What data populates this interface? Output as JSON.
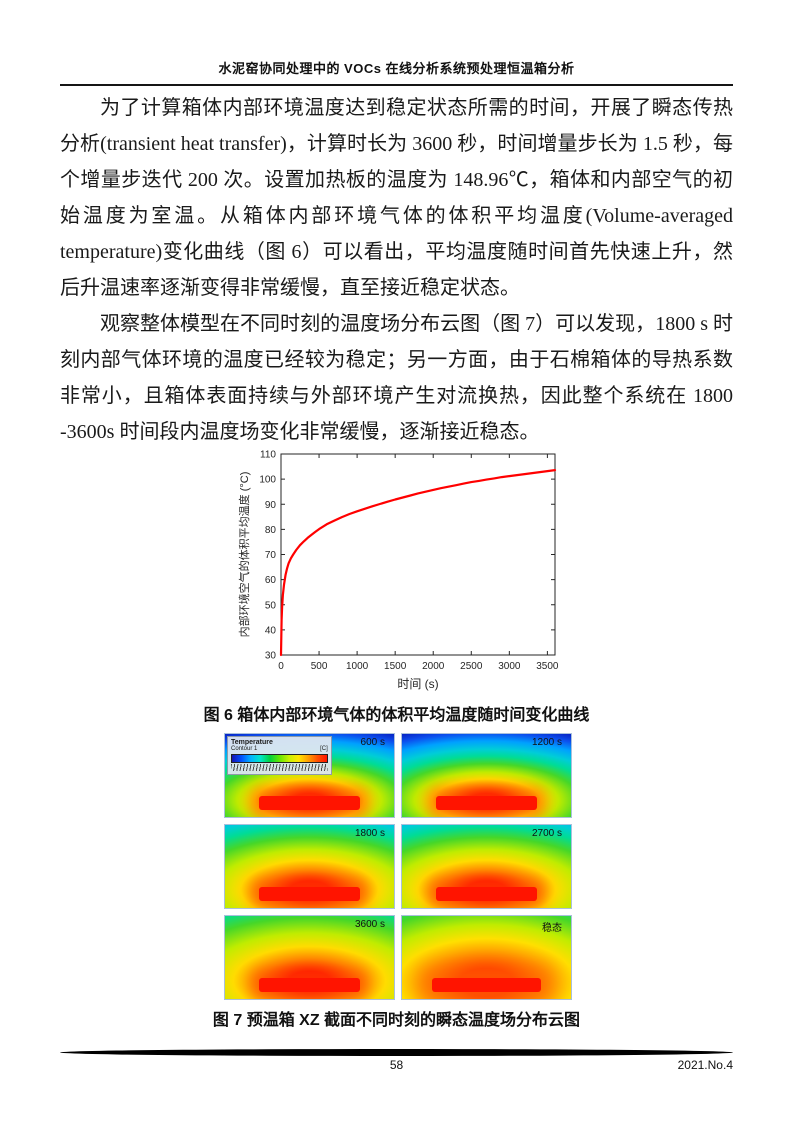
{
  "header": {
    "title": "水泥窑协同处理中的 VOCs 在线分析系统预处理恒温箱分析"
  },
  "paragraphs": [
    "为了计算箱体内部环境温度达到稳定状态所需的时间，开展了瞬态传热分析(transient heat transfer)，计算时长为 3600 秒，时间增量步长为 1.5 秒，每个增量步迭代 200 次。设置加热板的温度为 148.96℃，箱体和内部空气的初始温度为室温。从箱体内部环境气体的体积平均温度(Volume-averaged temperature)变化曲线（图 6）可以看出，平均温度随时间首先快速上升，然后升温速率逐渐变得非常缓慢，直至接近稳定状态。",
    "观察整体模型在不同时刻的温度场分布云图（图 7）可以发现，1800 s 时刻内部气体环境的温度已经较为稳定；另一方面，由于石棉箱体的导热系数非常小，且箱体表面持续与外部环境产生对流换热，因此整个系统在 1800 -3600s 时间段内温度场变化非常缓慢，逐渐接近稳态。"
  ],
  "figure6": {
    "caption": "图 6 箱体内部环境气体的体积平均温度随时间变化曲线"
  },
  "figure7": {
    "caption": "图 7 预温箱 XZ 截面不同时刻的瞬态温度场分布云图",
    "legend": {
      "title": "Temperature",
      "subtitle": "Contour 1",
      "unit": "[C]"
    },
    "panels": [
      {
        "label": "600 s"
      },
      {
        "label": "1200 s"
      },
      {
        "label": "1800 s"
      },
      {
        "label": "2700 s"
      },
      {
        "label": "3600 s"
      },
      {
        "label": "稳态"
      }
    ]
  },
  "footer": {
    "page_number": "58",
    "issue": "2021.No.4"
  },
  "chart_data": {
    "type": "line",
    "title": "",
    "xlabel": "时间 (s)",
    "ylabel": "内部环境空气的体积平均温度 (°C)",
    "xlim": [
      0,
      3600
    ],
    "ylim": [
      30,
      110
    ],
    "xticks": [
      0,
      500,
      1000,
      1500,
      2000,
      2500,
      3000,
      3500
    ],
    "yticks": [
      30,
      40,
      50,
      60,
      70,
      80,
      90,
      100,
      110
    ],
    "grid": false,
    "legend_position": "none",
    "line_color": "#ff0000",
    "series": [
      {
        "name": "箱体内部环境气体体积平均温度",
        "points": [
          [
            0,
            30
          ],
          [
            8,
            44
          ],
          [
            15,
            49
          ],
          [
            25,
            54
          ],
          [
            40,
            58
          ],
          [
            60,
            62
          ],
          [
            80,
            64.5
          ],
          [
            100,
            66.5
          ],
          [
            130,
            68.5
          ],
          [
            160,
            70
          ],
          [
            200,
            71.8
          ],
          [
            250,
            73.7
          ],
          [
            300,
            75.2
          ],
          [
            350,
            76.6
          ],
          [
            400,
            77.8
          ],
          [
            450,
            79
          ],
          [
            500,
            80.1
          ],
          [
            600,
            82
          ],
          [
            700,
            83.5
          ],
          [
            800,
            84.9
          ],
          [
            900,
            86.1
          ],
          [
            1000,
            87.2
          ],
          [
            1100,
            88.2
          ],
          [
            1200,
            89.2
          ],
          [
            1300,
            90.1
          ],
          [
            1400,
            91
          ],
          [
            1500,
            91.9
          ],
          [
            1600,
            92.7
          ],
          [
            1700,
            93.5
          ],
          [
            1800,
            94.3
          ],
          [
            1900,
            95
          ],
          [
            2000,
            95.7
          ],
          [
            2100,
            96.4
          ],
          [
            2200,
            97
          ],
          [
            2300,
            97.6
          ],
          [
            2400,
            98.2
          ],
          [
            2500,
            98.8
          ],
          [
            2600,
            99.3
          ],
          [
            2700,
            99.8
          ],
          [
            2800,
            100.3
          ],
          [
            2900,
            100.8
          ],
          [
            3000,
            101.2
          ],
          [
            3100,
            101.6
          ],
          [
            3200,
            102
          ],
          [
            3300,
            102.4
          ],
          [
            3400,
            102.8
          ],
          [
            3500,
            103.2
          ],
          [
            3600,
            103.6
          ]
        ]
      }
    ]
  }
}
